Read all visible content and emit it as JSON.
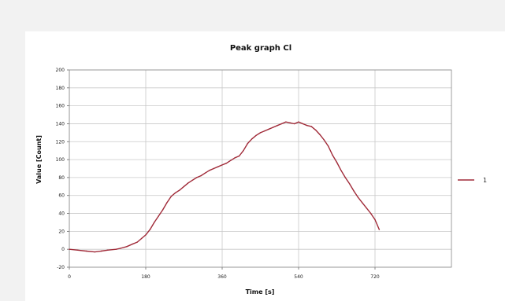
{
  "chart_data": {
    "type": "line",
    "title": "Peak graph Cl",
    "xlabel": "Time [s]",
    "ylabel": "Value [Count]",
    "xlim": [
      0,
      900
    ],
    "ylim": [
      -20,
      200
    ],
    "x_ticks": [
      0,
      180,
      360,
      540,
      720
    ],
    "x_tick_labels": [
      "0",
      "180",
      "360",
      "540",
      "720"
    ],
    "y_ticks": [
      -20,
      0,
      20,
      40,
      60,
      80,
      100,
      120,
      140,
      160,
      180,
      200
    ],
    "grid": true,
    "legend": "right",
    "series": [
      {
        "name": "1",
        "color": "#a02a38",
        "x": [
          0,
          20,
          40,
          60,
          75,
          90,
          110,
          120,
          135,
          150,
          160,
          170,
          180,
          190,
          200,
          210,
          220,
          230,
          240,
          250,
          260,
          270,
          280,
          290,
          300,
          310,
          320,
          330,
          340,
          350,
          360,
          370,
          380,
          390,
          400,
          410,
          420,
          430,
          440,
          450,
          460,
          470,
          480,
          490,
          500,
          510,
          520,
          530,
          540,
          550,
          560,
          570,
          580,
          590,
          600,
          610,
          620,
          630,
          640,
          650,
          660,
          670,
          680,
          690,
          700,
          710,
          720,
          730
        ],
        "y": [
          0,
          -1,
          -2,
          -3,
          -2,
          -1,
          0,
          1,
          3,
          6,
          8,
          12,
          16,
          22,
          30,
          37,
          44,
          52,
          59,
          63,
          66,
          70,
          74,
          77,
          80,
          82,
          85,
          88,
          90,
          92,
          94,
          96,
          99,
          102,
          104,
          110,
          118,
          123,
          127,
          130,
          132,
          134,
          136,
          138,
          140,
          142,
          141,
          140,
          142,
          140,
          138,
          137,
          133,
          128,
          122,
          115,
          105,
          97,
          88,
          80,
          73,
          65,
          58,
          52,
          46,
          40,
          33,
          22
        ]
      }
    ]
  }
}
